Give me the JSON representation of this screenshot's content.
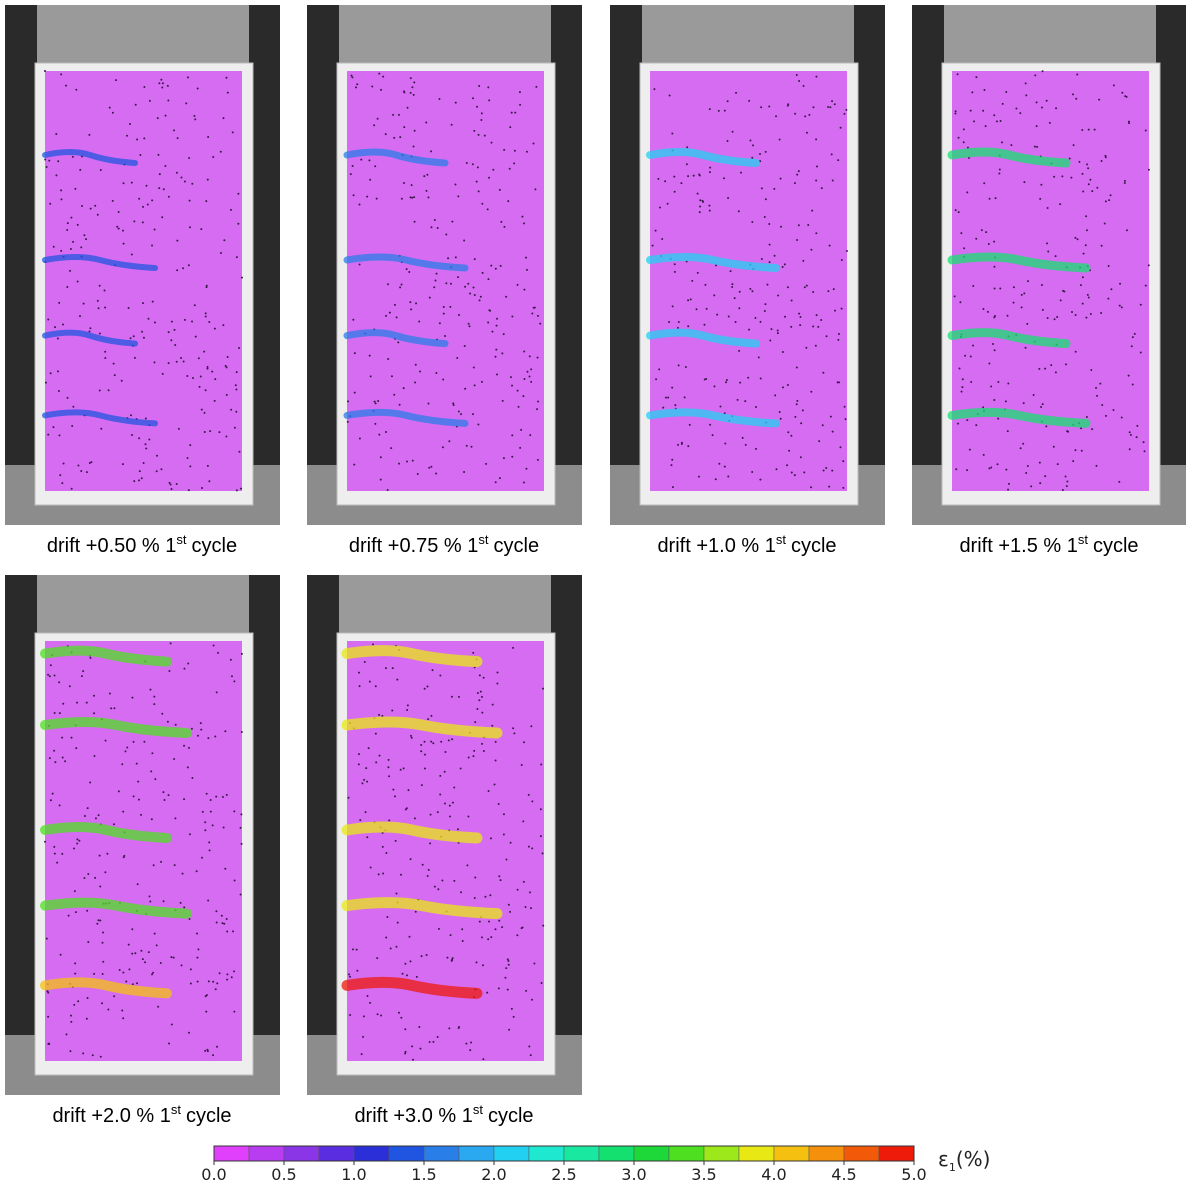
{
  "panels": [
    {
      "caption": "drift +0.50 % 1",
      "sup": "st",
      "suffix": "cycle"
    },
    {
      "caption": "drift +0.75 % 1",
      "sup": "st",
      "suffix": "cycle"
    },
    {
      "caption": "drift +1.0 % 1",
      "sup": "st",
      "suffix": "cycle"
    },
    {
      "caption": "drift +1.5 % 1",
      "sup": "st",
      "suffix": "cycle"
    },
    {
      "caption": "drift +2.0 % 1",
      "sup": "st",
      "suffix": "cycle"
    },
    {
      "caption": "drift +3.0 % 1",
      "sup": "st",
      "suffix": "cycle"
    }
  ],
  "colorbar": {
    "range": [
      0,
      5
    ],
    "colors": [
      "#e040fb",
      "#b83cf0",
      "#8a35e6",
      "#5a2ee0",
      "#2b2fd8",
      "#1f55e0",
      "#2a7ee8",
      "#2aa8f0",
      "#22d0f2",
      "#1ee8d0",
      "#18e8a0",
      "#14e070",
      "#1ed83a",
      "#4ee020",
      "#9ce81a",
      "#e8e814",
      "#f5c010",
      "#f5900c",
      "#f25a0a",
      "#ee1a0a"
    ],
    "ticks": [
      {
        "value": 0,
        "label": "0.0"
      },
      {
        "value": 0.5,
        "label": "0.5"
      },
      {
        "value": 1,
        "label": "1.0"
      },
      {
        "value": 1.5,
        "label": "1.5"
      },
      {
        "value": 2,
        "label": "2.0"
      },
      {
        "value": 2.5,
        "label": "2.5"
      },
      {
        "value": 3,
        "label": "3.0"
      },
      {
        "value": 3.5,
        "label": "3.5"
      },
      {
        "value": 4,
        "label": "4.0"
      },
      {
        "value": 4.5,
        "label": "4.5"
      },
      {
        "value": 5,
        "label": "5.0"
      }
    ],
    "symbol": "ε",
    "sub": "1",
    "unit": "(%)"
  }
}
